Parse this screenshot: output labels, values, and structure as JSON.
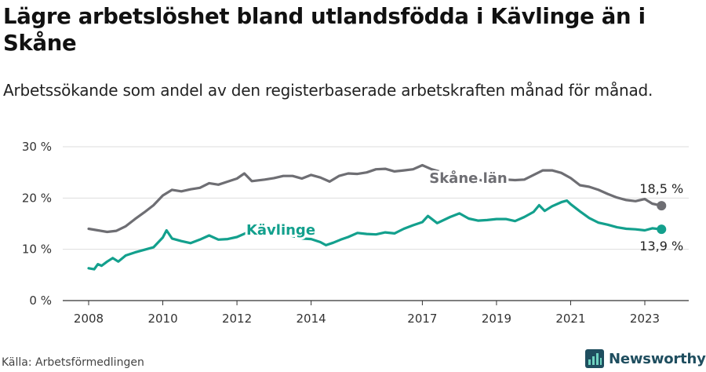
{
  "title": "Lägre arbetslöshet bland utlandsfödda i Kävlinge än i Skåne",
  "subtitle": "Arbetssökande som andel av den registerbaserade arbetskraften månad för månad.",
  "source": "Källa: Arbetsförmedlingen",
  "brand": "Newsworthy",
  "colors": {
    "skane": "#6e6e73",
    "kavlinge": "#13a08d",
    "grid": "#dddddd",
    "brand": "#1f4e5f"
  },
  "chart_data": {
    "type": "line",
    "ylim": [
      0,
      30
    ],
    "xlim": [
      2008.0,
      2023.6
    ],
    "yticks": [
      0,
      10,
      20,
      30
    ],
    "ytick_labels": [
      "0 %",
      "10 %",
      "20 %",
      "30 %"
    ],
    "xticks": [
      2008,
      2010,
      2012,
      2014,
      2017,
      2019,
      2021,
      2023
    ],
    "xtick_labels": [
      "2008",
      "2010",
      "2012",
      "2014",
      "2017",
      "2019",
      "2021",
      "2023"
    ],
    "series": [
      {
        "name": "Skåne län",
        "label": "Skåne län",
        "end_label": "18,5 %",
        "color": "#6e6e73",
        "points": [
          [
            2008.0,
            14.0
          ],
          [
            2008.25,
            13.7
          ],
          [
            2008.5,
            13.4
          ],
          [
            2008.75,
            13.6
          ],
          [
            2009.0,
            14.5
          ],
          [
            2009.25,
            15.9
          ],
          [
            2009.5,
            17.2
          ],
          [
            2009.75,
            18.6
          ],
          [
            2010.0,
            20.5
          ],
          [
            2010.25,
            21.6
          ],
          [
            2010.5,
            21.3
          ],
          [
            2010.75,
            21.7
          ],
          [
            2011.0,
            22.0
          ],
          [
            2011.25,
            22.9
          ],
          [
            2011.5,
            22.6
          ],
          [
            2011.75,
            23.2
          ],
          [
            2012.0,
            23.8
          ],
          [
            2012.2,
            24.8
          ],
          [
            2012.4,
            23.3
          ],
          [
            2012.75,
            23.6
          ],
          [
            2013.0,
            23.9
          ],
          [
            2013.25,
            24.3
          ],
          [
            2013.5,
            24.3
          ],
          [
            2013.75,
            23.8
          ],
          [
            2014.0,
            24.5
          ],
          [
            2014.25,
            24.0
          ],
          [
            2014.5,
            23.2
          ],
          [
            2014.75,
            24.3
          ],
          [
            2015.0,
            24.8
          ],
          [
            2015.25,
            24.7
          ],
          [
            2015.5,
            25.0
          ],
          [
            2015.75,
            25.6
          ],
          [
            2016.0,
            25.7
          ],
          [
            2016.25,
            25.2
          ],
          [
            2016.5,
            25.4
          ],
          [
            2016.75,
            25.6
          ],
          [
            2017.0,
            26.4
          ],
          [
            2017.25,
            25.6
          ],
          [
            2017.5,
            25.1
          ],
          [
            2017.75,
            24.4
          ],
          [
            2018.0,
            24.2
          ],
          [
            2018.25,
            24.0
          ],
          [
            2018.5,
            23.6
          ],
          [
            2018.75,
            23.2
          ],
          [
            2019.0,
            23.4
          ],
          [
            2019.25,
            23.6
          ],
          [
            2019.5,
            23.5
          ],
          [
            2019.75,
            23.6
          ],
          [
            2020.0,
            24.5
          ],
          [
            2020.25,
            25.4
          ],
          [
            2020.5,
            25.4
          ],
          [
            2020.75,
            24.9
          ],
          [
            2021.0,
            23.9
          ],
          [
            2021.25,
            22.5
          ],
          [
            2021.5,
            22.2
          ],
          [
            2021.75,
            21.6
          ],
          [
            2022.0,
            20.8
          ],
          [
            2022.25,
            20.1
          ],
          [
            2022.5,
            19.6
          ],
          [
            2022.75,
            19.4
          ],
          [
            2023.0,
            19.8
          ],
          [
            2023.2,
            18.9
          ],
          [
            2023.45,
            18.5
          ]
        ]
      },
      {
        "name": "Kävlinge",
        "label": "Kävlinge",
        "end_label": "13,9 %",
        "color": "#13a08d",
        "points": [
          [
            2008.0,
            6.3
          ],
          [
            2008.15,
            6.1
          ],
          [
            2008.25,
            7.1
          ],
          [
            2008.35,
            6.8
          ],
          [
            2008.5,
            7.6
          ],
          [
            2008.65,
            8.3
          ],
          [
            2008.8,
            7.6
          ],
          [
            2009.0,
            8.8
          ],
          [
            2009.25,
            9.4
          ],
          [
            2009.5,
            9.9
          ],
          [
            2009.75,
            10.4
          ],
          [
            2010.0,
            12.3
          ],
          [
            2010.1,
            13.7
          ],
          [
            2010.25,
            12.1
          ],
          [
            2010.5,
            11.6
          ],
          [
            2010.75,
            11.2
          ],
          [
            2011.0,
            11.9
          ],
          [
            2011.25,
            12.7
          ],
          [
            2011.5,
            11.9
          ],
          [
            2011.75,
            12.0
          ],
          [
            2012.0,
            12.4
          ],
          [
            2012.25,
            13.2
          ],
          [
            2012.5,
            13.4
          ],
          [
            2012.75,
            13.1
          ],
          [
            2013.0,
            13.0
          ],
          [
            2013.25,
            13.3
          ],
          [
            2013.5,
            12.6
          ],
          [
            2013.75,
            12.1
          ],
          [
            2014.0,
            12.0
          ],
          [
            2014.25,
            11.4
          ],
          [
            2014.4,
            10.8
          ],
          [
            2014.6,
            11.3
          ],
          [
            2014.8,
            11.9
          ],
          [
            2015.0,
            12.4
          ],
          [
            2015.25,
            13.2
          ],
          [
            2015.5,
            13.0
          ],
          [
            2015.75,
            12.9
          ],
          [
            2016.0,
            13.3
          ],
          [
            2016.25,
            13.1
          ],
          [
            2016.5,
            14.0
          ],
          [
            2016.75,
            14.7
          ],
          [
            2017.0,
            15.3
          ],
          [
            2017.15,
            16.5
          ],
          [
            2017.4,
            15.1
          ],
          [
            2017.75,
            16.3
          ],
          [
            2018.0,
            17.0
          ],
          [
            2018.25,
            16.0
          ],
          [
            2018.5,
            15.6
          ],
          [
            2018.75,
            15.7
          ],
          [
            2019.0,
            15.9
          ],
          [
            2019.25,
            15.9
          ],
          [
            2019.5,
            15.5
          ],
          [
            2019.75,
            16.3
          ],
          [
            2020.0,
            17.3
          ],
          [
            2020.15,
            18.6
          ],
          [
            2020.3,
            17.5
          ],
          [
            2020.5,
            18.4
          ],
          [
            2020.75,
            19.2
          ],
          [
            2020.9,
            19.5
          ],
          [
            2021.0,
            18.8
          ],
          [
            2021.25,
            17.4
          ],
          [
            2021.5,
            16.1
          ],
          [
            2021.75,
            15.2
          ],
          [
            2022.0,
            14.8
          ],
          [
            2022.25,
            14.3
          ],
          [
            2022.5,
            14.0
          ],
          [
            2022.75,
            13.9
          ],
          [
            2023.0,
            13.7
          ],
          [
            2023.2,
            14.1
          ],
          [
            2023.45,
            13.9
          ]
        ]
      }
    ]
  }
}
